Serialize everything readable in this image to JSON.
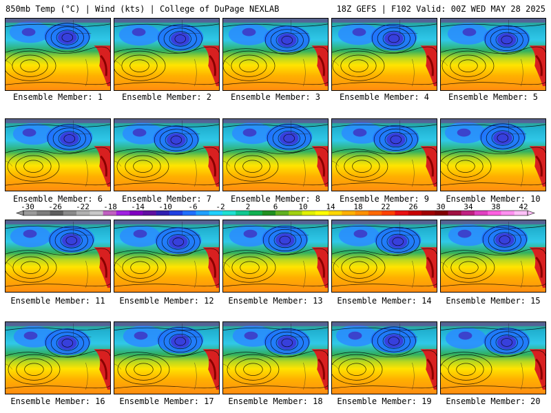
{
  "header": {
    "left": "850mb Temp (°C) | Wind (kts) | College of DuPage NEXLAB",
    "right": "18Z GEFS | F102 Valid: 00Z WED MAY 28 2025"
  },
  "panels": [
    {
      "caption": "Ensemble Member: 1"
    },
    {
      "caption": "Ensemble Member: 2"
    },
    {
      "caption": "Ensemble Member: 3"
    },
    {
      "caption": "Ensemble Member: 4"
    },
    {
      "caption": "Ensemble Member: 5"
    },
    {
      "caption": "Ensemble Member: 6"
    },
    {
      "caption": "Ensemble Member: 7"
    },
    {
      "caption": "Ensemble Member: 8"
    },
    {
      "caption": "Ensemble Member: 9"
    },
    {
      "caption": "Ensemble Member: 10"
    },
    {
      "caption": "Ensemble Member: 11"
    },
    {
      "caption": "Ensemble Member: 12"
    },
    {
      "caption": "Ensemble Member: 13"
    },
    {
      "caption": "Ensemble Member: 14"
    },
    {
      "caption": "Ensemble Member: 15"
    },
    {
      "caption": "Ensemble Member: 16"
    },
    {
      "caption": "Ensemble Member: 17"
    },
    {
      "caption": "Ensemble Member: 18"
    },
    {
      "caption": "Ensemble Member: 19"
    },
    {
      "caption": "Ensemble Member: 20"
    }
  ],
  "colorbar": {
    "labels": [
      "-30",
      "-26",
      "-22",
      "-18",
      "-14",
      "-10",
      "-6",
      "-2",
      "2",
      "6",
      "10",
      "14",
      "18",
      "22",
      "26",
      "30",
      "34",
      "38",
      "42"
    ],
    "colors": [
      "#9a9a9a",
      "#7c7c7c",
      "#5e5e5e",
      "#8a8a8a",
      "#b0b0b0",
      "#c8c8c8",
      "#c060c0",
      "#a020e0",
      "#8000c0",
      "#6010a0",
      "#3020b0",
      "#2040e0",
      "#2070ff",
      "#20a0ff",
      "#20d0ff",
      "#20e0d0",
      "#10c890",
      "#10b050",
      "#209020",
      "#60b020",
      "#a0d010",
      "#e0f000",
      "#ffff00",
      "#ffd700",
      "#ffb000",
      "#ff9000",
      "#ff6800",
      "#ff4000",
      "#e81010",
      "#c80000",
      "#a00000",
      "#800000",
      "#a01040",
      "#c02080",
      "#e040c0",
      "#ff60e0",
      "#ff90f0",
      "#ffc0f8"
    ]
  }
}
